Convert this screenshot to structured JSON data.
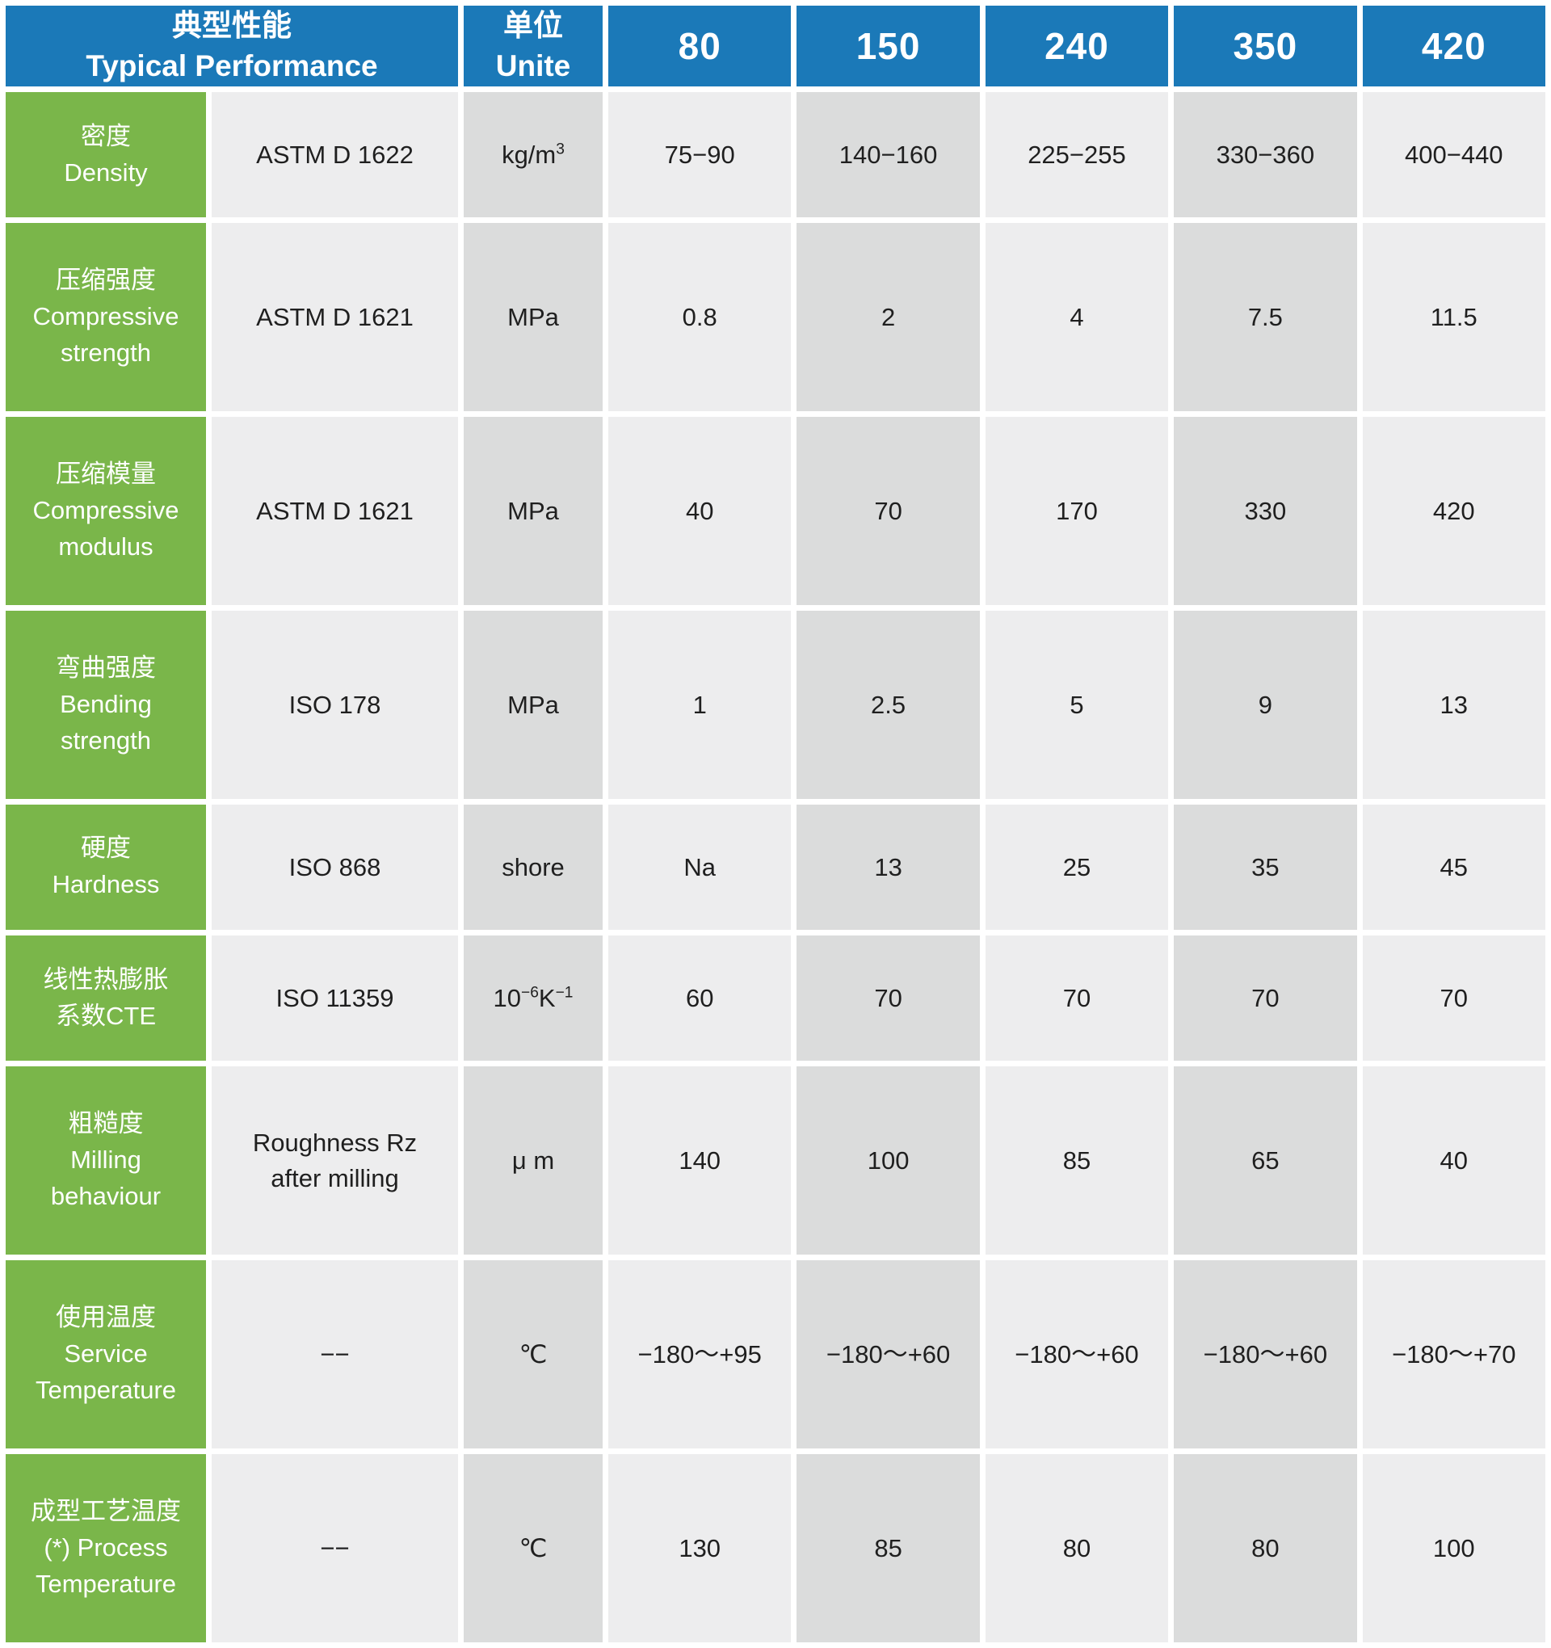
{
  "title": {
    "zh": "典型性能",
    "en": "Typical Performance"
  },
  "unit_header": {
    "zh": "单位",
    "en": "Unite"
  },
  "grades": [
    "80",
    "150",
    "240",
    "350",
    "420"
  ],
  "rows": [
    {
      "label_zh": "密度",
      "label_en": "Density",
      "standard": "ASTM D 1622",
      "unit": "kg/m<sup>3</sup>",
      "values": [
        "75−90",
        "140−160",
        "225−255",
        "330−360",
        "400−440"
      ]
    },
    {
      "label_zh": "压缩强度",
      "label_en": "Compressive\nstrength",
      "standard": "ASTM D 1621",
      "unit": "MPa",
      "values": [
        "0.8",
        "2",
        "4",
        "7.5",
        "11.5"
      ]
    },
    {
      "label_zh": "压缩模量",
      "label_en": "Compressive\nmodulus",
      "standard": "ASTM D 1621",
      "unit": "MPa",
      "values": [
        "40",
        "70",
        "170",
        "330",
        "420"
      ]
    },
    {
      "label_zh": "弯曲强度",
      "label_en": "Bending\nstrength",
      "standard": "ISO 178",
      "unit": "MPa",
      "values": [
        "1",
        "2.5",
        "5",
        "9",
        "13"
      ]
    },
    {
      "label_zh": "硬度",
      "label_en": "Hardness",
      "standard": "ISO 868",
      "unit": "shore",
      "values": [
        "Na",
        "13",
        "25",
        "35",
        "45"
      ]
    },
    {
      "label_zh": "线性热膨胀\n系数CTE",
      "label_en": "",
      "standard": "ISO 11359",
      "unit": "10<sup>−6</sup>K<sup>−1</sup>",
      "values": [
        "60",
        "70",
        "70",
        "70",
        "70"
      ]
    },
    {
      "label_zh": "粗糙度",
      "label_en": "Milling\nbehaviour",
      "standard": "Roughness Rz\nafter milling",
      "unit": "μ m",
      "values": [
        "140",
        "100",
        "85",
        "65",
        "40"
      ]
    },
    {
      "label_zh": "使用温度",
      "label_en": "Service\nTemperature",
      "standard": "−−",
      "unit": "℃",
      "values": [
        "−180〜+95",
        "−180〜+60",
        "−180〜+60",
        "−180〜+60",
        "−180〜+70"
      ]
    },
    {
      "label_zh": "成型工艺温度",
      "label_en": "(*) Process\nTemperature",
      "standard": "−−",
      "unit": "℃",
      "values": [
        "130",
        "85",
        "80",
        "80",
        "100"
      ]
    }
  ],
  "colors": {
    "header_blue": "#1b79b8",
    "label_green": "#7ab64a",
    "column_light": "#ededee",
    "column_dark": "#dbdcdc"
  }
}
